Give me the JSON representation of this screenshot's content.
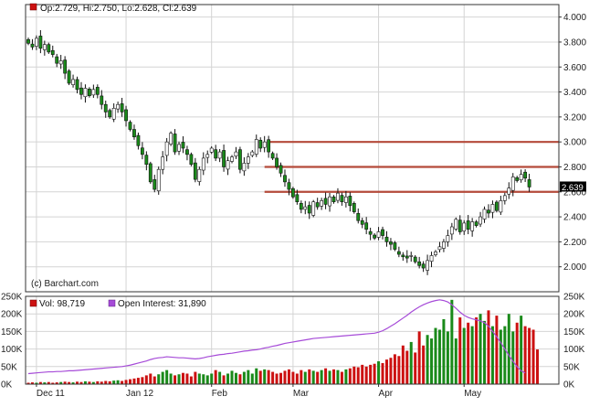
{
  "header": {
    "ohlc_text": "Op:2.729, Hi:2.750, Lo:2.628, Cl:2.639",
    "copyright": "(c) Barchart.com"
  },
  "volume_legend": {
    "vol_label": "Vol: 98,719",
    "oi_label": "Open Interest: 31,890"
  },
  "colors": {
    "up": "#1a8a1a",
    "down": "#cc1111",
    "grid": "#d4d4d4",
    "panel_border": "#333333",
    "resistance": "#b44a3a",
    "open_interest": "#a64bd8",
    "last_price_bg": "#000000"
  },
  "chart_data": [
    {
      "type": "candlestick",
      "title": "",
      "ylim": [
        1.8,
        4.1
      ],
      "y_ticks": [
        "4.000",
        "3.800",
        "3.600",
        "3.400",
        "3.200",
        "3.000",
        "2.800",
        "2.600",
        "2.400",
        "2.200",
        "2.000"
      ],
      "y_tick_values": [
        4.0,
        3.8,
        3.6,
        3.4,
        3.2,
        3.0,
        2.8,
        2.6,
        2.4,
        2.2,
        2.0
      ],
      "x_labels": [
        "Dec 11",
        "Jan 12",
        "Feb",
        "Mar",
        "Apr",
        "May"
      ],
      "x_label_index": [
        2,
        24,
        45,
        65,
        86,
        107
      ],
      "last_price": 2.639,
      "last_price_label": "2.639",
      "horizontal_lines": [
        {
          "y": 3.0,
          "from_index": 59
        },
        {
          "y": 2.8,
          "from_index": 58
        },
        {
          "y": 2.6,
          "from_index": 58
        }
      ],
      "closes": [
        3.79,
        3.76,
        3.83,
        3.75,
        3.78,
        3.72,
        3.7,
        3.63,
        3.65,
        3.55,
        3.47,
        3.5,
        3.42,
        3.38,
        3.43,
        3.37,
        3.42,
        3.38,
        3.3,
        3.24,
        3.2,
        3.27,
        3.3,
        3.24,
        3.17,
        3.1,
        3.04,
        2.97,
        2.9,
        2.82,
        2.68,
        2.62,
        2.78,
        2.88,
        3.0,
        3.07,
        2.92,
        2.98,
        2.95,
        2.9,
        2.82,
        2.7,
        2.78,
        2.87,
        2.9,
        2.95,
        2.87,
        2.92,
        2.8,
        2.85,
        2.88,
        2.92,
        2.78,
        2.83,
        2.88,
        2.92,
        3.02,
        2.95,
        3.0,
        2.92,
        2.87,
        2.8,
        2.75,
        2.68,
        2.62,
        2.56,
        2.52,
        2.46,
        2.48,
        2.43,
        2.52,
        2.48,
        2.53,
        2.5,
        2.56,
        2.52,
        2.59,
        2.52,
        2.56,
        2.49,
        2.44,
        2.37,
        2.34,
        2.3,
        2.26,
        2.23,
        2.28,
        2.25,
        2.2,
        2.18,
        2.14,
        2.1,
        2.08,
        2.07,
        2.09,
        2.04,
        2.01,
        1.99,
        2.05,
        2.09,
        2.12,
        2.16,
        2.2,
        2.25,
        2.32,
        2.38,
        2.28,
        2.35,
        2.3,
        2.36,
        2.33,
        2.4,
        2.46,
        2.43,
        2.5,
        2.45,
        2.53,
        2.57,
        2.63,
        2.72,
        2.69,
        2.74,
        2.71,
        2.639
      ],
      "volume_ylim": [
        0,
        250000
      ],
      "volume_ticks": [
        "250K",
        "200K",
        "150K",
        "100K",
        "50K",
        "0K"
      ],
      "volume_tick_values": [
        250000,
        200000,
        150000,
        100000,
        50000,
        0
      ],
      "volume": [
        4000,
        5000,
        4000,
        6000,
        5000,
        6000,
        4000,
        5000,
        6000,
        7000,
        6000,
        5000,
        7000,
        6000,
        8000,
        7000,
        6000,
        8000,
        7000,
        9000,
        8000,
        10000,
        11000,
        9000,
        12000,
        14000,
        16000,
        18000,
        20000,
        25000,
        30000,
        22000,
        28000,
        35000,
        40000,
        30000,
        25000,
        28000,
        32000,
        30000,
        22000,
        35000,
        30000,
        28000,
        25000,
        30000,
        40000,
        35000,
        25000,
        30000,
        38000,
        32000,
        28000,
        35000,
        40000,
        30000,
        45000,
        38000,
        42000,
        40000,
        35000,
        30000,
        32000,
        38000,
        42000,
        35000,
        30000,
        40000,
        35000,
        42000,
        38000,
        35000,
        40000,
        45000,
        38000,
        42000,
        40000,
        35000,
        42000,
        45000,
        50000,
        48000,
        55000,
        50000,
        55000,
        58000,
        65000,
        60000,
        70000,
        75000,
        85000,
        80000,
        110000,
        95000,
        120000,
        90000,
        150000,
        110000,
        140000,
        130000,
        160000,
        155000,
        185000,
        150000,
        240000,
        130000,
        190000,
        160000,
        175000,
        165000,
        190000,
        200000,
        180000,
        210000,
        165000,
        195000,
        155000,
        165000,
        200000,
        150000,
        175000,
        195000,
        165000,
        160000,
        155000,
        98719
      ],
      "open_interest": [
        30000,
        31000,
        32000,
        33000,
        34000,
        35000,
        35000,
        36000,
        36000,
        37000,
        38000,
        38000,
        39000,
        40000,
        41000,
        42000,
        43000,
        44000,
        45000,
        46000,
        47000,
        48000,
        49000,
        50000,
        52000,
        54000,
        57000,
        60000,
        63000,
        66000,
        70000,
        73000,
        75000,
        76000,
        78000,
        77000,
        76000,
        75000,
        75000,
        74000,
        73000,
        72000,
        73000,
        75000,
        78000,
        80000,
        82000,
        84000,
        85000,
        87000,
        88000,
        90000,
        92000,
        94000,
        95000,
        97000,
        98000,
        100000,
        103000,
        105000,
        108000,
        110000,
        113000,
        116000,
        118000,
        120000,
        122000,
        124000,
        126000,
        128000,
        130000,
        131000,
        132000,
        133000,
        134000,
        135000,
        136000,
        137000,
        138000,
        139000,
        140000,
        141000,
        142000,
        143000,
        144000,
        145000,
        148000,
        152000,
        158000,
        165000,
        172000,
        180000,
        188000,
        196000,
        205000,
        213000,
        220000,
        226000,
        231000,
        235000,
        238000,
        240000,
        238000,
        234000,
        226000,
        216000,
        205000,
        196000,
        190000,
        186000,
        183000,
        180000,
        175000,
        165000,
        150000,
        135000,
        118000,
        100000,
        82000,
        65000,
        50000,
        38000,
        31890
      ]
    }
  ]
}
